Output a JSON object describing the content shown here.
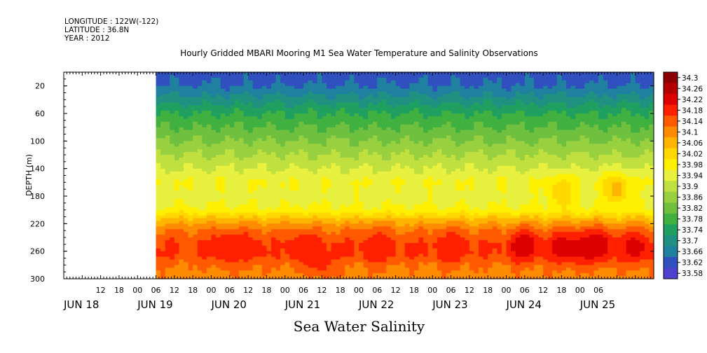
{
  "header": {
    "longitude": "LONGITUDE : 122W(-122)",
    "latitude": "LATITUDE : 36.8N",
    "year": "YEAR : 2012"
  },
  "footer_title": "Sea Water Salinity",
  "chart_data": {
    "type": "heatmap",
    "title": "Hourly Gridded MBARI Mooring M1 Sea Water Temperature and Salinity Observations",
    "xlabel": "",
    "ylabel": "DEPTH (m)",
    "ylim": [
      300,
      0
    ],
    "y_ticks": [
      20,
      60,
      100,
      140,
      180,
      220,
      260,
      300
    ],
    "x_range_hours": [
      0,
      192
    ],
    "data_start_hour": 30,
    "x_hour_labels": [
      "12",
      "18",
      "00",
      "06",
      "12",
      "18",
      "00",
      "06",
      "12",
      "18",
      "00",
      "06",
      "12",
      "18",
      "00",
      "06",
      "12",
      "18",
      "00",
      "06",
      "12",
      "18",
      "00",
      "06",
      "12",
      "18",
      "00",
      "06"
    ],
    "x_date_labels": [
      "JUN 18",
      "JUN 19",
      "JUN 20",
      "JUN 21",
      "JUN 22",
      "JUN 23",
      "JUN 24",
      "JUN 25"
    ],
    "colorbar": {
      "levels": [
        "34.3",
        "34.26",
        "34.22",
        "34.18",
        "34.14",
        "34.1",
        "34.06",
        "34.02",
        "33.98",
        "33.94",
        "33.9",
        "33.86",
        "33.82",
        "33.78",
        "33.74",
        "33.7",
        "33.66",
        "33.62",
        "33.58"
      ],
      "colors": [
        "#8b0000",
        "#b40000",
        "#dd0000",
        "#ff2000",
        "#ff5a00",
        "#ff8c00",
        "#ffb400",
        "#ffd800",
        "#fff000",
        "#e8f040",
        "#c0e040",
        "#98d040",
        "#70c040",
        "#40b040",
        "#20a060",
        "#209080",
        "#2080a0",
        "#3050c0",
        "#5040d0",
        "#8020e0",
        "#c000ff"
      ]
    },
    "profile": [
      {
        "depth": 0,
        "value": 33.68
      },
      {
        "depth": 20,
        "value": 33.7
      },
      {
        "depth": 40,
        "value": 33.76
      },
      {
        "depth": 60,
        "value": 33.82
      },
      {
        "depth": 80,
        "value": 33.86
      },
      {
        "depth": 100,
        "value": 33.9
      },
      {
        "depth": 120,
        "value": 33.94
      },
      {
        "depth": 140,
        "value": 33.98
      },
      {
        "depth": 160,
        "value": 34.02
      },
      {
        "depth": 180,
        "value": 34.0
      },
      {
        "depth": 200,
        "value": 34.03
      },
      {
        "depth": 215,
        "value": 34.12
      },
      {
        "depth": 230,
        "value": 34.18
      },
      {
        "depth": 250,
        "value": 34.22
      },
      {
        "depth": 265,
        "value": 34.22
      },
      {
        "depth": 280,
        "value": 34.18
      },
      {
        "depth": 300,
        "value": 34.16
      }
    ],
    "hotspots": [
      {
        "hour": 53,
        "depth": 255,
        "value": 34.26
      },
      {
        "hour": 60,
        "depth": 255,
        "value": 34.24
      },
      {
        "hour": 78,
        "depth": 255,
        "value": 34.26
      },
      {
        "hour": 84,
        "depth": 275,
        "value": 34.24
      },
      {
        "hour": 102,
        "depth": 255,
        "value": 34.26
      },
      {
        "hour": 126,
        "depth": 255,
        "value": 34.26
      },
      {
        "hour": 150,
        "depth": 252,
        "value": 34.3
      },
      {
        "hour": 162,
        "depth": 255,
        "value": 34.28
      },
      {
        "hour": 168,
        "depth": 255,
        "value": 34.28
      },
      {
        "hour": 174,
        "depth": 252,
        "value": 34.3
      },
      {
        "hour": 186,
        "depth": 255,
        "value": 34.28
      },
      {
        "hour": 180,
        "depth": 170,
        "value": 34.12
      },
      {
        "hour": 162,
        "depth": 175,
        "value": 34.1
      }
    ]
  }
}
